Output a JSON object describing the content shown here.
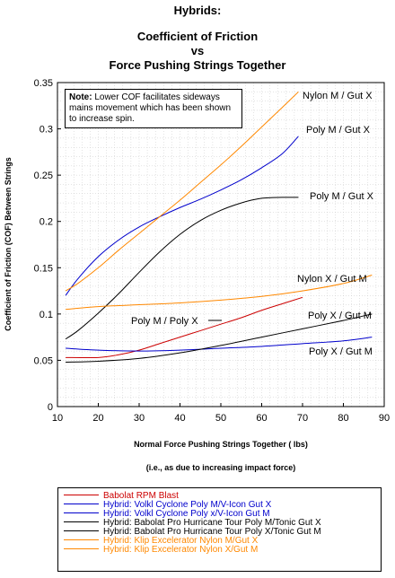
{
  "chart_data": {
    "type": "line",
    "title": [
      "Hybrids:",
      "Coefficient of Friction",
      "vs",
      "Force Pushing Strings Together"
    ],
    "xlabel": "Normal Force Pushing Strings Together ( lbs)",
    "xlabel_sub": "(i.e., as due to increasing impact force)",
    "ylabel": "Coefficient of Friction (COF) Between Strings",
    "xlim": [
      10,
      90
    ],
    "ylim": [
      0,
      0.35
    ],
    "xticks": [
      "10",
      "20",
      "30",
      "40",
      "50",
      "60",
      "70",
      "80",
      "90"
    ],
    "xtick_values": [
      10,
      20,
      30,
      40,
      50,
      60,
      70,
      80,
      90
    ],
    "yticks": [
      "0",
      "0.05",
      "0.1",
      "0.15",
      "0.2",
      "0.25",
      "0.3",
      "0.35"
    ],
    "ytick_values": [
      0,
      0.05,
      0.1,
      0.15,
      0.2,
      0.25,
      0.3,
      0.35
    ],
    "grid": true,
    "note_bold": "Note:",
    "note_text": " Lower COF facilitates sideways mains movement which has been shown to increase spin.",
    "series": [
      {
        "name": "Babolat RPM Blast",
        "label": "Poly M / Poly X",
        "color": "#cc0000",
        "x": [
          12,
          20,
          25,
          30,
          35,
          40,
          45,
          50,
          55,
          60,
          65,
          70
        ],
        "y": [
          0.053,
          0.053,
          0.056,
          0.061,
          0.068,
          0.075,
          0.082,
          0.089,
          0.096,
          0.104,
          0.111,
          0.118
        ]
      },
      {
        "name": "Hybrid: Volkl Cyclone Poly M/V-Icon Gut X",
        "label": "Poly M / Gut X",
        "color": "#0000cc",
        "x": [
          12,
          15,
          20,
          25,
          30,
          35,
          40,
          45,
          50,
          55,
          60,
          65,
          69
        ],
        "y": [
          0.12,
          0.138,
          0.162,
          0.18,
          0.194,
          0.205,
          0.215,
          0.224,
          0.234,
          0.245,
          0.258,
          0.273,
          0.292
        ]
      },
      {
        "name": "Hybrid: Volkl Cyclone Poly x/V-Icon Gut M",
        "label": "Poly X / Gut M",
        "color": "#0000cc",
        "x": [
          12,
          20,
          30,
          40,
          50,
          60,
          70,
          80,
          87
        ],
        "y": [
          0.063,
          0.061,
          0.06,
          0.061,
          0.063,
          0.065,
          0.068,
          0.071,
          0.075
        ]
      },
      {
        "name": "Hybrid: Babolat Pro Hurricane Tour Poly M/Tonic Gut X",
        "label": "Poly M / Gut X",
        "color": "#000000",
        "x": [
          12,
          15,
          20,
          25,
          30,
          35,
          40,
          45,
          50,
          55,
          60,
          65,
          69
        ],
        "y": [
          0.073,
          0.082,
          0.101,
          0.122,
          0.145,
          0.167,
          0.186,
          0.201,
          0.212,
          0.22,
          0.225,
          0.226,
          0.226
        ]
      },
      {
        "name": "Hybrid: Babolat Pro Hurricane Tour Poly X/Tonic Gut M",
        "label": "Poly X / Gut M",
        "color": "#000000",
        "x": [
          12,
          20,
          30,
          40,
          50,
          60,
          70,
          80,
          87
        ],
        "y": [
          0.048,
          0.049,
          0.052,
          0.058,
          0.066,
          0.075,
          0.084,
          0.093,
          0.1
        ]
      },
      {
        "name": "Hybrid: Klip Excelerator Nylon M/Gut X",
        "label": "Nylon M / Gut X",
        "color": "#ff8800",
        "x": [
          12,
          15,
          20,
          25,
          30,
          35,
          40,
          45,
          50,
          55,
          60,
          65,
          69
        ],
        "y": [
          0.125,
          0.133,
          0.15,
          0.169,
          0.187,
          0.205,
          0.223,
          0.242,
          0.261,
          0.281,
          0.302,
          0.323,
          0.34
        ]
      },
      {
        "name": "Hybrid: Klip Excelerator Nylon X/Gut M",
        "label": "Nylon X / Gut M",
        "color": "#ff8800",
        "x": [
          12,
          20,
          30,
          40,
          50,
          60,
          70,
          80,
          87
        ],
        "y": [
          0.105,
          0.108,
          0.11,
          0.112,
          0.115,
          0.119,
          0.125,
          0.133,
          0.142
        ]
      }
    ]
  }
}
